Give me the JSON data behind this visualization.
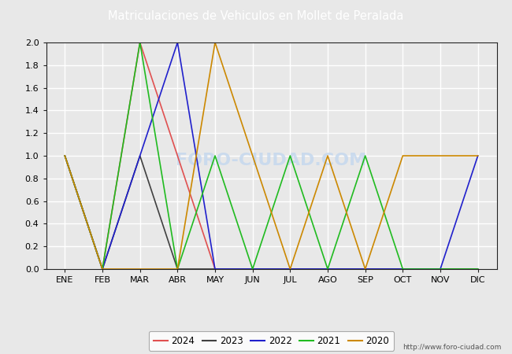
{
  "title": "Matriculaciones de Vehiculos en Mollet de Peralada",
  "title_color": "white",
  "title_bg_color": "#5b9bd5",
  "months": [
    "ENE",
    "FEB",
    "MAR",
    "ABR",
    "MAY",
    "JUN",
    "JUL",
    "AGO",
    "SEP",
    "OCT",
    "NOV",
    "DIC"
  ],
  "series": {
    "2024": {
      "color": "#e05050",
      "data": [
        1,
        0,
        2,
        1,
        0,
        null,
        null,
        null,
        null,
        null,
        null,
        null
      ]
    },
    "2023": {
      "color": "#404040",
      "data": [
        1,
        0,
        1,
        0,
        0,
        0,
        0,
        0,
        0,
        0,
        0,
        0
      ]
    },
    "2022": {
      "color": "#2020cc",
      "data": [
        1,
        0,
        1,
        2,
        0,
        0,
        0,
        0,
        0,
        0,
        0,
        1
      ]
    },
    "2021": {
      "color": "#20bb20",
      "data": [
        1,
        0,
        2,
        0,
        1,
        0,
        1,
        0,
        1,
        0,
        0,
        0
      ]
    },
    "2020": {
      "color": "#cc8800",
      "data": [
        1,
        0,
        0,
        0,
        2,
        1,
        0,
        1,
        0,
        1,
        1,
        1
      ]
    }
  },
  "ylim": [
    0.0,
    2.0
  ],
  "yticks": [
    0.0,
    0.2,
    0.4,
    0.6,
    0.8,
    1.0,
    1.2,
    1.4,
    1.6,
    1.8,
    2.0
  ],
  "watermark": "FORO-CIUDAD.COM",
  "url": "http://www.foro-ciudad.com",
  "bg_color": "#e8e8e8",
  "plot_bg_color": "#e8e8e8",
  "grid_color": "#ffffff",
  "legend_order": [
    "2024",
    "2023",
    "2022",
    "2021",
    "2020"
  ],
  "linewidth": 1.2
}
